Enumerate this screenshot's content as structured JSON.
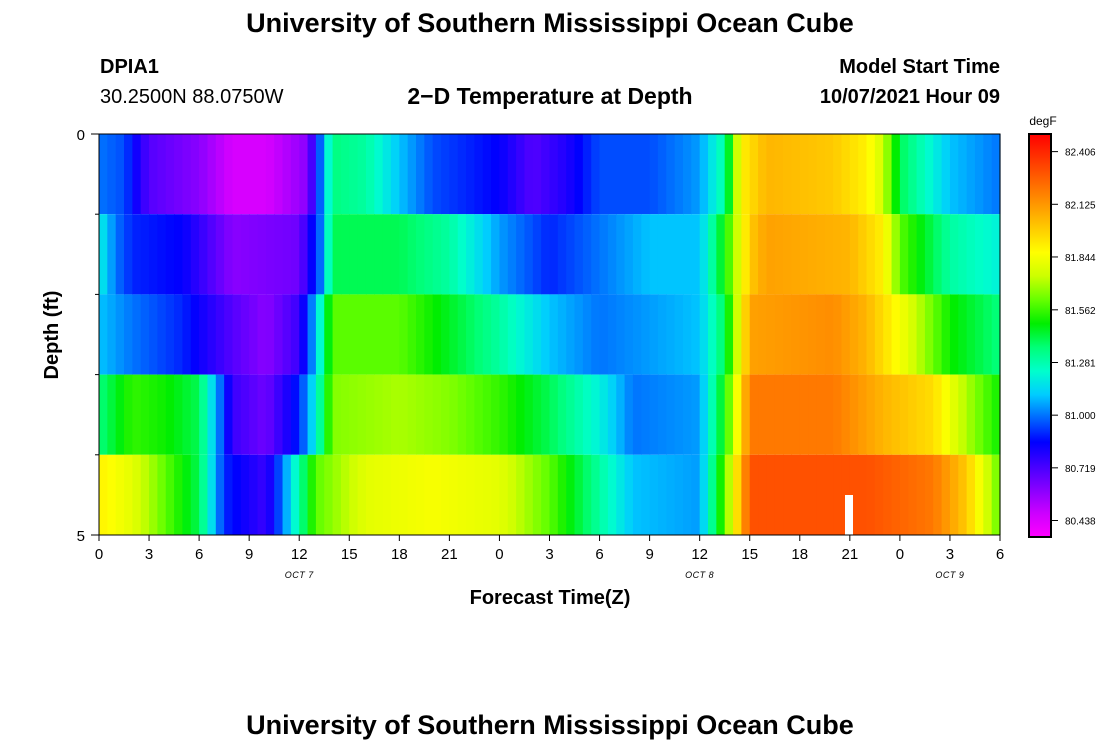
{
  "header": {
    "title": "University of Southern Mississippi Ocean Cube",
    "station_id": "DPIA1",
    "station_coords": "30.2500N  88.0750W",
    "plot_title": "2−D Temperature at Depth",
    "model_start_label": "Model Start Time",
    "model_start_value": "10/07/2021 Hour 09"
  },
  "footer": {
    "title": "University of Southern Mississippi Ocean Cube"
  },
  "chart_data": {
    "type": "heatmap",
    "title": "2−D Temperature at Depth",
    "xlabel": "Forecast Time(Z)",
    "ylabel": "Depth (ft)",
    "x_tick_labels": [
      "0",
      "3",
      "6",
      "9",
      "12",
      "15",
      "18",
      "21",
      "0",
      "3",
      "6",
      "9",
      "12",
      "15",
      "18",
      "21",
      "0",
      "3",
      "6"
    ],
    "x_date_labels": [
      {
        "label": "OCT 7",
        "tick_index": 4
      },
      {
        "label": "OCT 8",
        "tick_index": 12
      },
      {
        "label": "OCT 9",
        "tick_index": 17
      }
    ],
    "y_tick_labels": [
      {
        "label": "0",
        "value": 0
      },
      {
        "label": "5",
        "value": 5
      }
    ],
    "y_minor_ticks": [
      1,
      2,
      3,
      4
    ],
    "ylim": [
      0,
      5
    ],
    "x_hours_range": [
      0,
      54
    ],
    "colorbar": {
      "unit": "degF",
      "min": 80.35,
      "max": 82.5,
      "tick_values": [
        "82.406",
        "82.125",
        "81.844",
        "81.562",
        "81.281",
        "81.000",
        "80.719",
        "80.438"
      ],
      "colors": [
        "#ff00ff",
        "#cc00ff",
        "#8800ff",
        "#4400ff",
        "#0000ff",
        "#0066ff",
        "#00ccff",
        "#00ffcc",
        "#00ff77",
        "#00ee00",
        "#66ff00",
        "#ccff00",
        "#ffff00",
        "#ffcc00",
        "#ff9900",
        "#ff6600",
        "#ff3300",
        "#ff0000"
      ]
    },
    "depth_layers": [
      0,
      1,
      2,
      3,
      4,
      5
    ],
    "series": [
      {
        "depth": 0.25,
        "points": [
          [
            0,
            81.0
          ],
          [
            1.5,
            80.95
          ],
          [
            3,
            80.7
          ],
          [
            6,
            80.6
          ],
          [
            8,
            80.45
          ],
          [
            10,
            80.45
          ],
          [
            12.5,
            80.6
          ],
          [
            13.3,
            81.0
          ],
          [
            14,
            81.35
          ],
          [
            16,
            81.3
          ],
          [
            18,
            81.1
          ],
          [
            20,
            80.95
          ],
          [
            22,
            80.9
          ],
          [
            24,
            80.85
          ],
          [
            26,
            80.7
          ],
          [
            28,
            80.8
          ],
          [
            30,
            80.95
          ],
          [
            33,
            80.95
          ],
          [
            36,
            81.05
          ],
          [
            37.5,
            81.3
          ],
          [
            38.5,
            81.9
          ],
          [
            40,
            82.05
          ],
          [
            44,
            82.0
          ],
          [
            46,
            81.9
          ],
          [
            47,
            81.75
          ],
          [
            48,
            81.4
          ],
          [
            51,
            81.1
          ],
          [
            54,
            81.0
          ]
        ]
      },
      {
        "depth": 1.0,
        "points": [
          [
            0,
            81.2
          ],
          [
            1,
            81.0
          ],
          [
            2,
            80.9
          ],
          [
            5,
            80.85
          ],
          [
            8,
            80.6
          ],
          [
            12,
            80.65
          ],
          [
            13.3,
            81.0
          ],
          [
            14,
            81.4
          ],
          [
            18,
            81.4
          ],
          [
            21,
            81.3
          ],
          [
            24,
            81.05
          ],
          [
            27,
            80.9
          ],
          [
            30,
            81.0
          ],
          [
            33,
            81.1
          ],
          [
            36,
            81.1
          ],
          [
            37.5,
            81.5
          ],
          [
            39,
            82.0
          ],
          [
            40,
            82.1
          ],
          [
            45,
            82.05
          ],
          [
            47,
            81.9
          ],
          [
            48,
            81.6
          ],
          [
            51,
            81.3
          ],
          [
            54,
            81.2
          ]
        ]
      },
      {
        "depth": 2.0,
        "points": [
          [
            0,
            81.1
          ],
          [
            2,
            81.0
          ],
          [
            5,
            80.9
          ],
          [
            8,
            80.7
          ],
          [
            10,
            80.6
          ],
          [
            12,
            80.75
          ],
          [
            13,
            81.1
          ],
          [
            14,
            81.6
          ],
          [
            18,
            81.6
          ],
          [
            21,
            81.45
          ],
          [
            24,
            81.3
          ],
          [
            27,
            81.1
          ],
          [
            30,
            81.0
          ],
          [
            33,
            81.05
          ],
          [
            36,
            81.1
          ],
          [
            37.5,
            81.4
          ],
          [
            39,
            82.1
          ],
          [
            44,
            82.15
          ],
          [
            46,
            82.05
          ],
          [
            48,
            81.85
          ],
          [
            51,
            81.5
          ],
          [
            54,
            81.35
          ]
        ]
      },
      {
        "depth": 3.0,
        "points": [
          [
            0,
            81.35
          ],
          [
            2,
            81.55
          ],
          [
            4,
            81.5
          ],
          [
            6,
            81.4
          ],
          [
            8,
            80.75
          ],
          [
            10,
            80.65
          ],
          [
            12,
            80.9
          ],
          [
            13,
            81.2
          ],
          [
            14,
            81.65
          ],
          [
            18,
            81.7
          ],
          [
            21,
            81.65
          ],
          [
            24,
            81.55
          ],
          [
            27,
            81.4
          ],
          [
            30,
            81.2
          ],
          [
            32,
            81.0
          ],
          [
            36,
            81.05
          ],
          [
            37.5,
            81.5
          ],
          [
            39,
            82.2
          ],
          [
            44,
            82.2
          ],
          [
            47,
            82.05
          ],
          [
            50,
            81.95
          ],
          [
            52,
            81.7
          ],
          [
            54,
            81.5
          ]
        ]
      },
      {
        "depth": 4.0,
        "points": [
          [
            0,
            81.9
          ],
          [
            2,
            81.8
          ],
          [
            4,
            81.6
          ],
          [
            6,
            81.4
          ],
          [
            7.5,
            80.9
          ],
          [
            10,
            80.75
          ],
          [
            11,
            81.0
          ],
          [
            12,
            81.3
          ],
          [
            13,
            81.6
          ],
          [
            16,
            81.8
          ],
          [
            20,
            81.85
          ],
          [
            24,
            81.8
          ],
          [
            27,
            81.6
          ],
          [
            30,
            81.3
          ],
          [
            32,
            81.1
          ],
          [
            36,
            81.05
          ],
          [
            37.5,
            81.6
          ],
          [
            39,
            82.3
          ],
          [
            46,
            82.3
          ],
          [
            50,
            82.2
          ],
          [
            52,
            82.0
          ],
          [
            54,
            81.6
          ]
        ]
      },
      {
        "depth": 4.75,
        "points": [
          [
            0,
            82.15
          ],
          [
            2,
            82.05
          ],
          [
            4,
            81.85
          ],
          [
            6,
            81.4
          ],
          [
            7.5,
            80.95
          ],
          [
            10,
            80.7
          ],
          [
            11,
            81.05
          ],
          [
            12,
            81.5
          ],
          [
            14,
            81.7
          ],
          [
            16,
            81.85
          ],
          [
            20,
            82.0
          ],
          [
            24,
            82.05
          ],
          [
            27,
            81.85
          ],
          [
            30,
            81.5
          ],
          [
            32,
            81.2
          ],
          [
            36,
            81.05
          ],
          [
            37.5,
            81.7
          ],
          [
            39,
            82.35
          ],
          [
            45,
            82.45
          ],
          [
            48,
            82.4
          ],
          [
            51,
            82.2
          ],
          [
            53,
            81.8
          ],
          [
            54,
            81.6
          ]
        ]
      }
    ]
  }
}
